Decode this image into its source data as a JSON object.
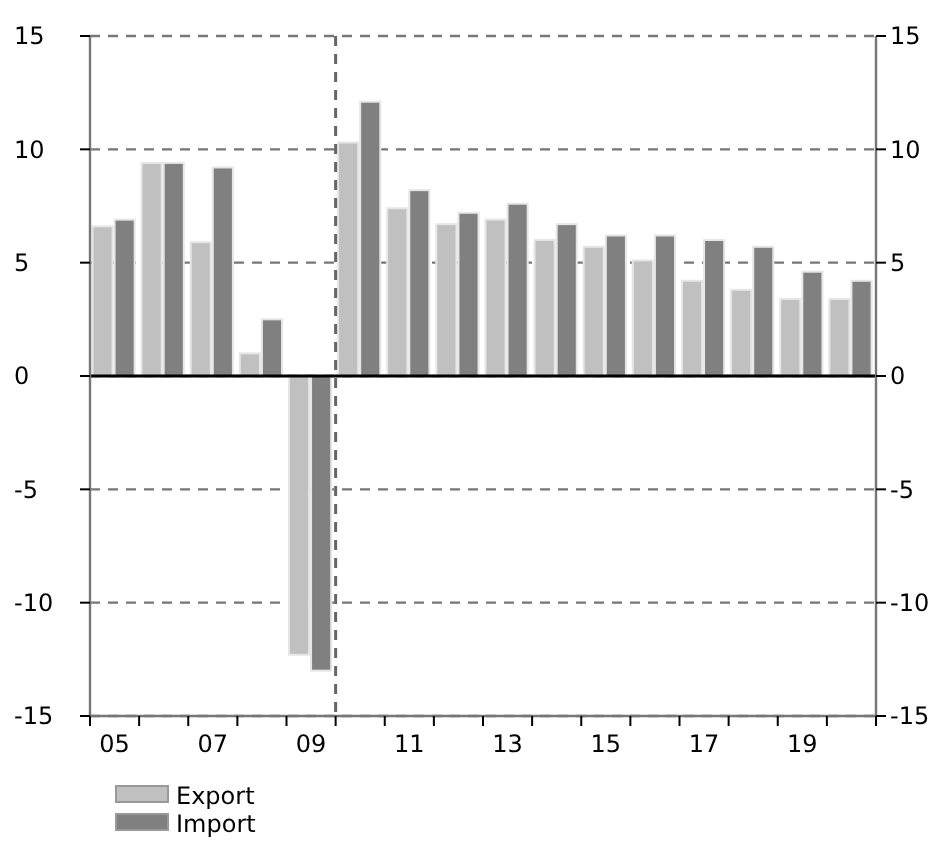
{
  "chart_data": {
    "type": "bar",
    "x": [
      2005,
      2006,
      2007,
      2008,
      2009,
      2010,
      2011,
      2012,
      2013,
      2014,
      2015,
      2016,
      2017,
      2018,
      2019,
      2020
    ],
    "xlim": [
      2004.5,
      2020.5
    ],
    "xticks": [
      {
        "value": 2004.5,
        "label": null
      },
      {
        "value": 2005,
        "label": "05"
      },
      {
        "value": 2005.5,
        "label": null
      },
      {
        "value": 2006.5,
        "label": null
      },
      {
        "value": 2007,
        "label": "07"
      },
      {
        "value": 2007.5,
        "label": null
      },
      {
        "value": 2008.5,
        "label": null
      },
      {
        "value": 2009,
        "label": "09"
      },
      {
        "value": 2009.5,
        "label": null
      },
      {
        "value": 2010.5,
        "label": null
      },
      {
        "value": 2011,
        "label": "11"
      },
      {
        "value": 2011.5,
        "label": null
      },
      {
        "value": 2012.5,
        "label": null
      },
      {
        "value": 2013,
        "label": "13"
      },
      {
        "value": 2013.5,
        "label": null
      },
      {
        "value": 2014.5,
        "label": null
      },
      {
        "value": 2015,
        "label": "15"
      },
      {
        "value": 2015.5,
        "label": null
      },
      {
        "value": 2016.5,
        "label": null
      },
      {
        "value": 2017,
        "label": "17"
      },
      {
        "value": 2017.5,
        "label": null
      },
      {
        "value": 2018.5,
        "label": null
      },
      {
        "value": 2019,
        "label": "19"
      },
      {
        "value": 2019.5,
        "label": null
      },
      {
        "value": 2020.5,
        "label": null
      }
    ],
    "ylim": [
      -15,
      15
    ],
    "yticks": [
      -15,
      -10,
      -5,
      0,
      5,
      10,
      15
    ],
    "y2lim": [
      -15,
      15
    ],
    "y2ticks": [
      -15,
      -10,
      -5,
      0,
      5,
      10,
      15
    ],
    "series": [
      {
        "name": "Export",
        "color": "#c0c0c0",
        "values": [
          6.6,
          9.4,
          5.9,
          1.0,
          -12.3,
          10.3,
          7.4,
          6.7,
          6.9,
          6.0,
          5.7,
          5.1,
          4.2,
          3.8,
          3.4,
          3.4
        ]
      },
      {
        "name": "Import",
        "color": "#808080",
        "values": [
          6.9,
          9.4,
          9.2,
          2.5,
          -13.0,
          12.1,
          8.2,
          7.2,
          7.6,
          6.7,
          6.2,
          6.2,
          6.0,
          5.7,
          4.6,
          4.2
        ]
      }
    ],
    "ref_lines": [
      {
        "axis": "x",
        "value": 2009.5,
        "label": null,
        "color": "#666666",
        "line_style": "dashed"
      }
    ],
    "grid": "y",
    "legend": "bottom left"
  }
}
